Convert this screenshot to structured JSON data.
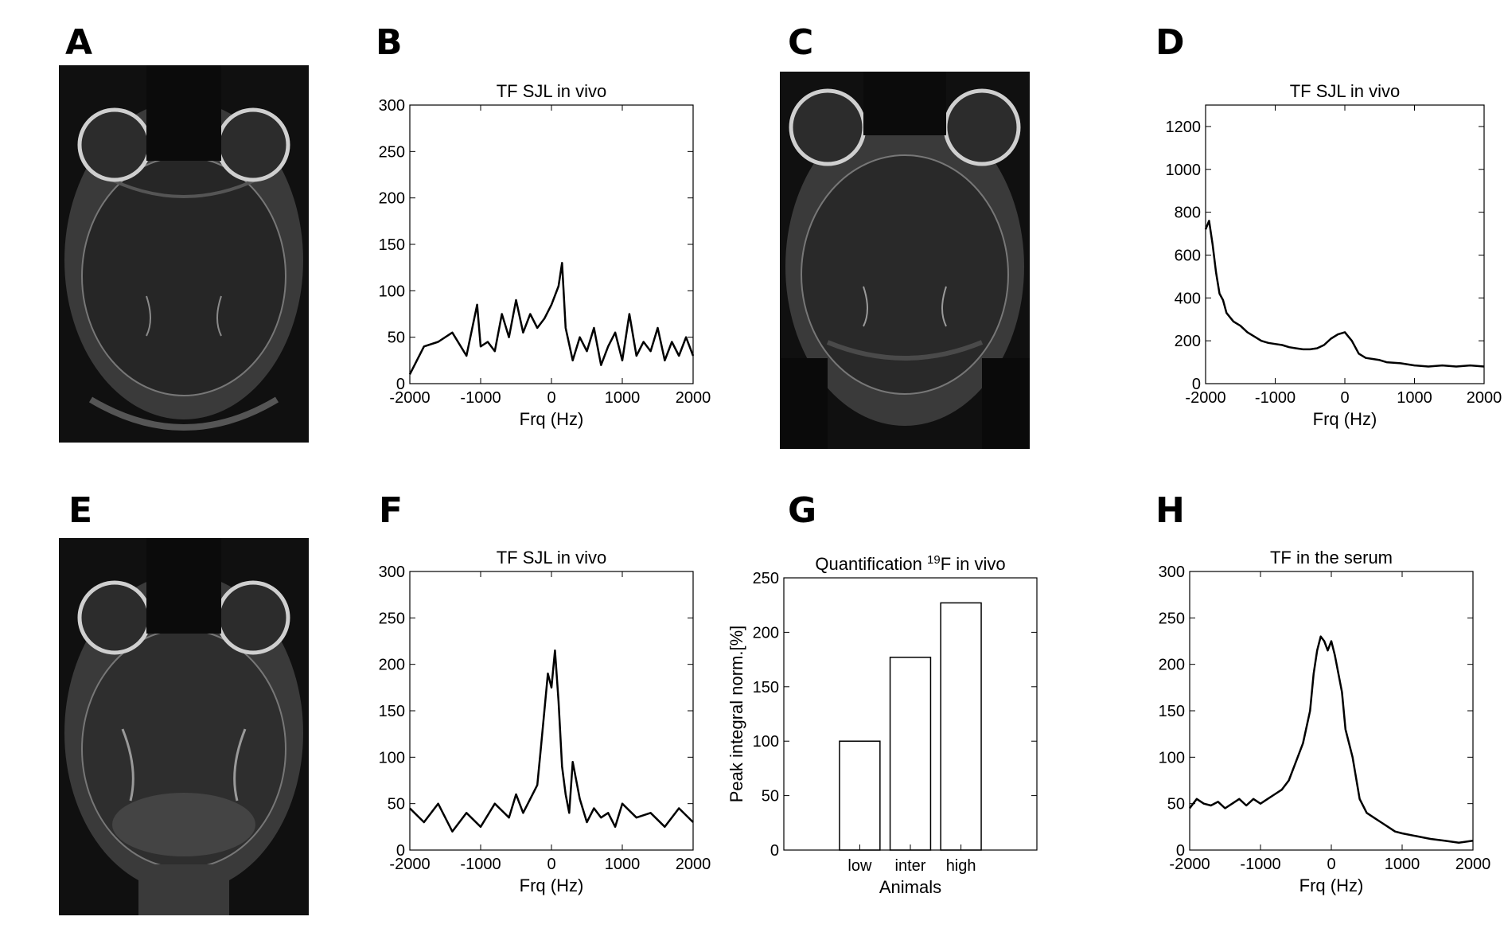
{
  "panel_labels": [
    "A",
    "B",
    "C",
    "D",
    "E",
    "F",
    "G",
    "H"
  ],
  "chart_data": [
    {
      "panel": "B",
      "type": "line",
      "title": "TF SJL in vivo",
      "xlabel": "Frq (Hz)",
      "ylabel": "",
      "xlim": [
        -2000,
        2000
      ],
      "ylim": [
        0,
        300
      ],
      "xticks": [
        -2000,
        -1000,
        0,
        1000,
        2000
      ],
      "yticks": [
        0,
        50,
        100,
        150,
        200,
        250,
        300
      ],
      "series": [
        {
          "x": [
            -2000,
            -1800,
            -1600,
            -1400,
            -1200,
            -1050,
            -1000,
            -900,
            -800,
            -700,
            -600,
            -500,
            -400,
            -300,
            -200,
            -100,
            0,
            100,
            150,
            200,
            300,
            400,
            500,
            600,
            700,
            800,
            900,
            1000,
            1100,
            1200,
            1300,
            1400,
            1500,
            1600,
            1700,
            1800,
            1900,
            2000
          ],
          "y": [
            10,
            40,
            45,
            55,
            30,
            85,
            40,
            45,
            35,
            75,
            50,
            90,
            55,
            75,
            60,
            70,
            85,
            105,
            130,
            60,
            25,
            50,
            35,
            60,
            20,
            40,
            55,
            25,
            75,
            30,
            45,
            35,
            60,
            25,
            45,
            30,
            50,
            30
          ]
        }
      ]
    },
    {
      "panel": "D",
      "type": "line",
      "title": "TF SJL in vivo",
      "xlabel": "Frq (Hz)",
      "ylabel": "",
      "xlim": [
        -2000,
        2000
      ],
      "ylim": [
        0,
        1300
      ],
      "xticks": [
        -2000,
        -1000,
        0,
        1000,
        2000
      ],
      "yticks": [
        0,
        200,
        400,
        600,
        800,
        1000,
        1200
      ],
      "series": [
        {
          "x": [
            -2000,
            -1950,
            -1900,
            -1850,
            -1800,
            -1750,
            -1700,
            -1600,
            -1500,
            -1400,
            -1300,
            -1200,
            -1100,
            -1000,
            -900,
            -800,
            -700,
            -600,
            -500,
            -400,
            -300,
            -200,
            -100,
            0,
            100,
            200,
            300,
            400,
            500,
            600,
            800,
            1000,
            1200,
            1400,
            1600,
            1800,
            2000
          ],
          "y": [
            720,
            760,
            650,
            520,
            420,
            390,
            330,
            290,
            270,
            240,
            220,
            200,
            190,
            185,
            180,
            170,
            165,
            160,
            160,
            165,
            180,
            210,
            230,
            240,
            200,
            140,
            120,
            115,
            110,
            100,
            95,
            85,
            80,
            85,
            80,
            85,
            80
          ]
        }
      ]
    },
    {
      "panel": "F",
      "type": "line",
      "title": "TF SJL in vivo",
      "xlabel": "Frq (Hz)",
      "ylabel": "",
      "xlim": [
        -2000,
        2000
      ],
      "ylim": [
        0,
        300
      ],
      "xticks": [
        -2000,
        -1000,
        0,
        1000,
        2000
      ],
      "yticks": [
        0,
        50,
        100,
        150,
        200,
        250,
        300
      ],
      "series": [
        {
          "x": [
            -2000,
            -1800,
            -1600,
            -1400,
            -1200,
            -1000,
            -800,
            -600,
            -500,
            -400,
            -300,
            -200,
            -150,
            -100,
            -50,
            0,
            50,
            100,
            150,
            200,
            250,
            300,
            400,
            500,
            600,
            700,
            800,
            900,
            1000,
            1200,
            1400,
            1600,
            1800,
            2000
          ],
          "y": [
            45,
            30,
            50,
            20,
            40,
            25,
            50,
            35,
            60,
            40,
            55,
            70,
            110,
            150,
            190,
            175,
            215,
            160,
            90,
            60,
            40,
            95,
            55,
            30,
            45,
            35,
            40,
            25,
            50,
            35,
            40,
            25,
            45,
            30
          ]
        }
      ]
    },
    {
      "panel": "G",
      "type": "bar",
      "title": "Quantification ",
      "title_sup": "19",
      "title_rest": "F in vivo",
      "xlabel": "Animals",
      "ylabel": "Peak integral norm.[%]",
      "ylim": [
        0,
        250
      ],
      "yticks": [
        0,
        50,
        100,
        150,
        200,
        250
      ],
      "categories": [
        "low",
        "inter",
        "high"
      ],
      "values": [
        100,
        177,
        227
      ]
    },
    {
      "panel": "H",
      "type": "line",
      "title": "TF in the serum",
      "xlabel": "Frq (Hz)",
      "ylabel": "",
      "xlim": [
        -2000,
        2000
      ],
      "ylim": [
        0,
        300
      ],
      "xticks": [
        -2000,
        -1000,
        0,
        1000,
        2000
      ],
      "yticks": [
        0,
        50,
        100,
        150,
        200,
        250,
        300
      ],
      "series": [
        {
          "x": [
            -2000,
            -1900,
            -1800,
            -1700,
            -1600,
            -1500,
            -1400,
            -1300,
            -1200,
            -1100,
            -1000,
            -900,
            -800,
            -700,
            -600,
            -500,
            -400,
            -300,
            -250,
            -200,
            -150,
            -100,
            -50,
            0,
            50,
            100,
            150,
            200,
            300,
            400,
            500,
            600,
            700,
            800,
            900,
            1000,
            1200,
            1400,
            1600,
            1800,
            2000
          ],
          "y": [
            45,
            55,
            50,
            48,
            52,
            45,
            50,
            55,
            48,
            55,
            50,
            55,
            60,
            65,
            75,
            95,
            115,
            150,
            190,
            215,
            230,
            225,
            215,
            225,
            210,
            190,
            170,
            130,
            100,
            55,
            40,
            35,
            30,
            25,
            20,
            18,
            15,
            12,
            10,
            8,
            10
          ]
        }
      ]
    }
  ]
}
